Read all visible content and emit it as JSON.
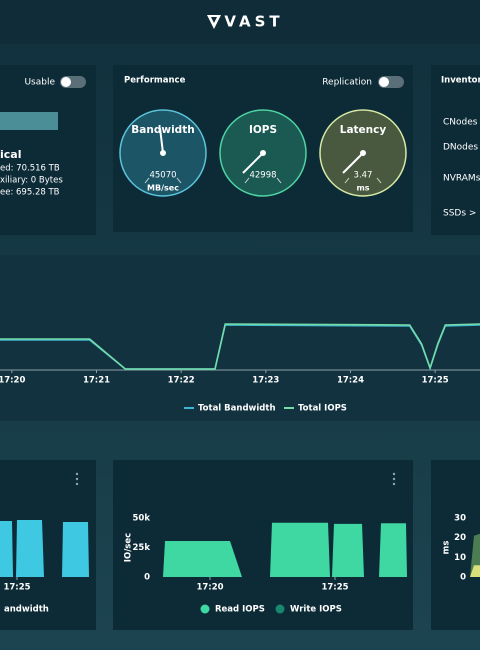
{
  "header": {
    "logo": "VAST"
  },
  "capacity": {
    "toggle": "Usable",
    "lines": [
      "ical",
      "ed: 70.516 TB",
      "xiliary: 0 Bytes",
      "ee: 695.28 TB"
    ]
  },
  "performance": {
    "title": "Performance",
    "toggle": "Replication",
    "gauges": [
      {
        "label": "Bandwidth",
        "value": 45070,
        "unit": "MB/sec",
        "color": "#5cc3da",
        "fill": "#1c5566"
      },
      {
        "label": "IOPS",
        "value": 42998,
        "color": "#4fd3a3",
        "fill": "#1b5a52"
      },
      {
        "label": "Latency",
        "value": 3.47,
        "unit": "ms",
        "color": "#d6e9a4",
        "fill": "#48593f"
      }
    ]
  },
  "inventory": {
    "title": "Inventory",
    "items": [
      "CNodes >",
      "DNodes >",
      "NVRAMs",
      "SSDs >"
    ]
  },
  "chart_data": [
    {
      "type": "line",
      "x": [
        -0.14,
        0.92,
        1.34,
        2.4,
        2.52,
        4.7,
        4.84,
        4.94,
        5.03,
        5.12,
        5.53
      ],
      "xlim": [
        -0.14,
        5.53
      ],
      "xticks": [
        {
          "value": 0,
          "label": "17:20"
        },
        {
          "value": 1,
          "label": "17:21"
        },
        {
          "value": 2,
          "label": "17:22"
        },
        {
          "value": 3,
          "label": "17:23"
        },
        {
          "value": 4,
          "label": "17:24"
        },
        {
          "value": 5,
          "label": "17:25"
        }
      ],
      "ylim": [
        0,
        50
      ],
      "series": [
        {
          "name": "Total Bandwidth",
          "color": "#3fb6d6",
          "values": [
            30,
            30,
            1,
            1,
            45,
            44,
            25,
            2,
            25,
            44,
            45
          ]
        },
        {
          "name": "Total IOPS",
          "color": "#74dca6",
          "values": [
            31,
            31,
            1,
            1,
            46,
            45,
            26,
            2,
            26,
            45,
            46
          ]
        }
      ]
    },
    {
      "type": "area",
      "x": [
        4.32,
        4.8,
        4.84,
        4.96,
        5.0,
        6.0,
        6.08,
        6.8,
        6.84,
        7.84,
        7.88
      ],
      "xlim": [
        4.32,
        7.92
      ],
      "xticks": [
        {
          "value": 5,
          "label": "17:25"
        }
      ],
      "ylim": [
        0,
        60
      ],
      "series": [
        {
          "name": "andwidth",
          "color": "#3ec8e2",
          "values": [
            56,
            56,
            0,
            0,
            57,
            57,
            0,
            0,
            55,
            55,
            0
          ]
        }
      ]
    },
    {
      "type": "area",
      "y_label": "IO/sec",
      "x": [
        -1.88,
        -1.8,
        0.8,
        1.28,
        2.4,
        2.48,
        4.72,
        4.8,
        4.88,
        4.96,
        6.08,
        6.16,
        6.76,
        6.84,
        7.84,
        7.88
      ],
      "xlim": [
        -2,
        7.92
      ],
      "xticks": [
        {
          "value": 0,
          "label": "17:20"
        },
        {
          "value": 5,
          "label": "17:25"
        }
      ],
      "ylim": [
        0,
        50000
      ],
      "yticks": [
        0,
        {
          "value": 25000,
          "label": "25k"
        },
        {
          "value": 50000,
          "label": "50k"
        }
      ],
      "series": [
        {
          "name": "Read IOPS",
          "color": "#3fd8a2",
          "values": [
            0,
            30500,
            30500,
            0,
            0,
            46000,
            46000,
            0,
            0,
            45000,
            45000,
            0,
            0,
            45500,
            45500,
            0
          ]
        },
        {
          "name": "Write IOPS",
          "color": "#17876d"
        }
      ]
    },
    {
      "type": "area",
      "y_label": "ms",
      "x": [
        0,
        0.4,
        1
      ],
      "xlim": [
        0,
        1
      ],
      "ylim": [
        0,
        30
      ],
      "yticks": [
        0,
        10,
        20,
        30
      ],
      "series": [
        {
          "color": "#4c7c52",
          "values": [
            0,
            21,
            22
          ]
        },
        {
          "color": "#d9e07a",
          "values": [
            0,
            6,
            6
          ]
        }
      ]
    }
  ]
}
